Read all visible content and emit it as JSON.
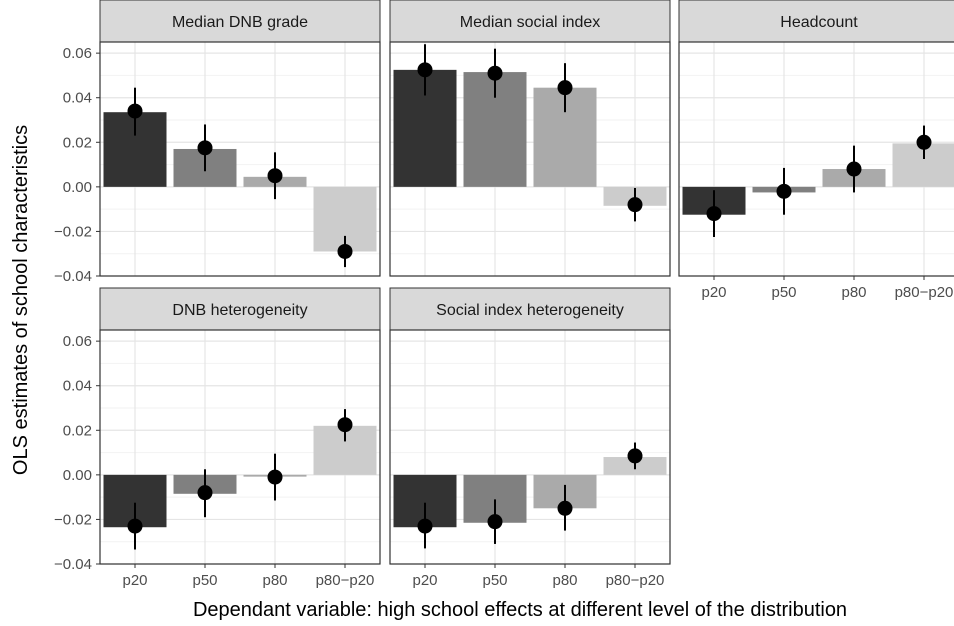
{
  "chart_data": {
    "type": "bar",
    "xlabel": "Dependant variable: high school effects at different level of the distribution",
    "ylabel": "OLS estimates of school characteristics",
    "ylim": [
      -0.04,
      0.065
    ],
    "yticks": [
      -0.04,
      -0.02,
      0.0,
      0.02,
      0.04,
      0.06
    ],
    "ytick_labels": [
      "−0.04",
      "−0.02",
      "0.00",
      "0.02",
      "0.04",
      "0.06"
    ],
    "categories": [
      "p20",
      "p50",
      "p80",
      "p80−p20"
    ],
    "bar_colors": [
      "#333333",
      "#808080",
      "#aaaaaa",
      "#cccccc"
    ],
    "grid": true,
    "panels": [
      {
        "title": "Median DNB grade",
        "values": [
          0.0335,
          0.017,
          0.0045,
          -0.029
        ],
        "points": [
          0.034,
          0.0175,
          0.005,
          -0.029
        ],
        "ci_low": [
          0.023,
          0.007,
          -0.0055,
          -0.036
        ],
        "ci_high": [
          0.0445,
          0.028,
          0.0155,
          -0.022
        ]
      },
      {
        "title": "Median social index",
        "values": [
          0.0525,
          0.0515,
          0.0445,
          -0.0085
        ],
        "points": [
          0.0525,
          0.051,
          0.0445,
          -0.008
        ],
        "ci_low": [
          0.041,
          0.04,
          0.0335,
          -0.0155
        ],
        "ci_high": [
          0.064,
          0.062,
          0.0555,
          -0.0005
        ]
      },
      {
        "title": "Headcount",
        "values": [
          -0.0125,
          -0.0025,
          0.008,
          0.0195
        ],
        "points": [
          -0.012,
          -0.002,
          0.008,
          0.02
        ],
        "ci_low": [
          -0.0225,
          -0.0125,
          -0.0025,
          0.0125
        ],
        "ci_high": [
          -0.0015,
          0.0085,
          0.0185,
          0.0275
        ]
      },
      {
        "title": "DNB heterogeneity",
        "values": [
          -0.0235,
          -0.0085,
          -0.0008,
          0.022
        ],
        "points": [
          -0.023,
          -0.008,
          -0.001,
          0.0225
        ],
        "ci_low": [
          -0.0335,
          -0.019,
          -0.0115,
          0.015
        ],
        "ci_high": [
          -0.0125,
          0.0025,
          0.0095,
          0.0295
        ]
      },
      {
        "title": "Social index heterogeneity",
        "values": [
          -0.0235,
          -0.0215,
          -0.015,
          0.008
        ],
        "points": [
          -0.023,
          -0.021,
          -0.015,
          0.0085
        ],
        "ci_low": [
          -0.033,
          -0.031,
          -0.025,
          0.0025
        ],
        "ci_high": [
          -0.0125,
          -0.011,
          -0.0045,
          0.0145
        ]
      }
    ]
  }
}
